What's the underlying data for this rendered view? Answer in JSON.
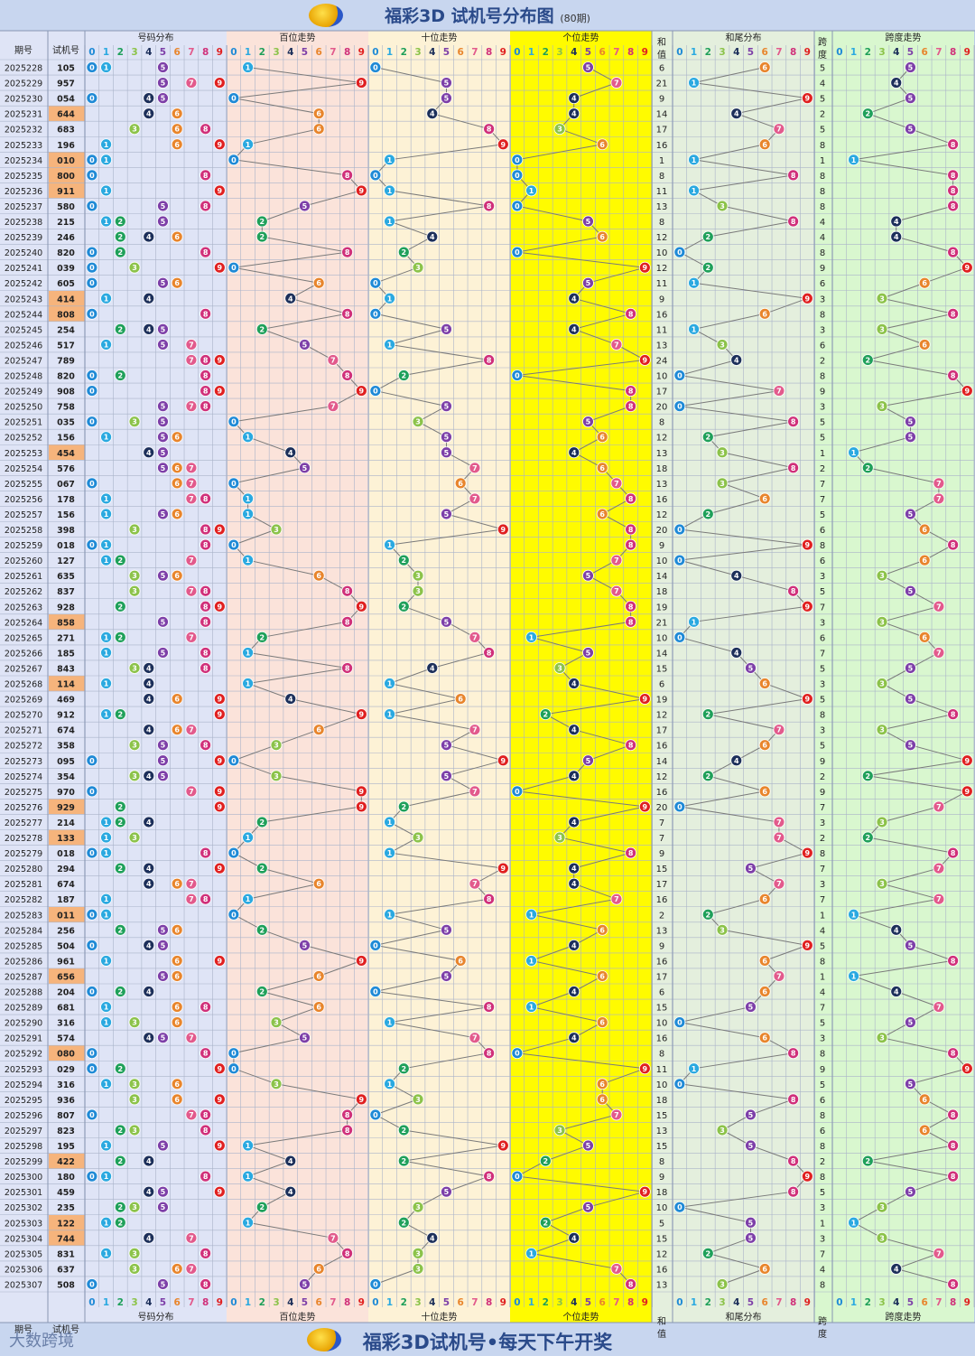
{
  "title": "福彩3D 试机号分布图",
  "period_count": "(80期)",
  "footer": "福彩3D试机号•每天下午开奖",
  "brand": "大数跨境",
  "headers": {
    "period": "期号",
    "test_number": "试机号",
    "number_dist": "号码分布",
    "hundreds": "百位走势",
    "tens": "十位走势",
    "units": "个位走势",
    "sum": "和值",
    "sum_tail": "和尾分布",
    "span": "跨度",
    "span_trend": "跨度走势"
  },
  "digits": [
    "0",
    "1",
    "2",
    "3",
    "4",
    "5",
    "6",
    "7",
    "8",
    "9"
  ],
  "colors": {
    "d0": "#1f8ad6",
    "d1": "#2aa9e0",
    "d2": "#1fa05a",
    "d3": "#8cc34a",
    "d4": "#1c2f5a",
    "d5": "#7d3fa8",
    "d6": "#e8852c",
    "d7": "#e25a8c",
    "d8": "#d0307a",
    "d9": "#e02020",
    "bg_dist": "#dfe4f6",
    "bg_hundreds": "#fbe3da",
    "bg_tens": "#fdf2d6",
    "bg_units": "#fffb00",
    "bg_tail": "#e4efdd",
    "bg_span": "#d9f7cf",
    "highlight": "#f6b47c"
  },
  "chart_data": {
    "type": "table",
    "periods": [
      "2025228",
      "2025229",
      "2025230",
      "2025231",
      "2025232",
      "2025233",
      "2025234",
      "2025235",
      "2025236",
      "2025237",
      "2025238",
      "2025239",
      "2025240",
      "2025241",
      "2025242",
      "2025243",
      "2025244",
      "2025245",
      "2025246",
      "2025247",
      "2025248",
      "2025249",
      "2025250",
      "2025251",
      "2025252",
      "2025253",
      "2025254",
      "2025255",
      "2025256",
      "2025257",
      "2025258",
      "2025259",
      "2025260",
      "2025261",
      "2025262",
      "2025263",
      "2025264",
      "2025265",
      "2025266",
      "2025267",
      "2025268",
      "2025269",
      "2025270",
      "2025271",
      "2025272",
      "2025273",
      "2025274",
      "2025275",
      "2025276",
      "2025277",
      "2025278",
      "2025279",
      "2025280",
      "2025281",
      "2025282",
      "2025283",
      "2025284",
      "2025285",
      "2025286",
      "2025287",
      "2025288",
      "2025289",
      "2025290",
      "2025291",
      "2025292",
      "2025293",
      "2025294",
      "2025295",
      "2025296",
      "2025297",
      "2025298",
      "2025299",
      "2025300",
      "2025301",
      "2025302",
      "2025303",
      "2025304",
      "2025305",
      "2025306",
      "2025307"
    ],
    "numbers": [
      "105",
      "957",
      "054",
      "644",
      "683",
      "196",
      "010",
      "800",
      "911",
      "580",
      "215",
      "246",
      "820",
      "039",
      "605",
      "414",
      "808",
      "254",
      "517",
      "789",
      "820",
      "908",
      "758",
      "035",
      "156",
      "454",
      "576",
      "067",
      "178",
      "156",
      "398",
      "018",
      "127",
      "635",
      "837",
      "928",
      "858",
      "271",
      "185",
      "843",
      "114",
      "469",
      "912",
      "674",
      "358",
      "095",
      "354",
      "970",
      "929",
      "214",
      "133",
      "018",
      "294",
      "674",
      "187",
      "011",
      "256",
      "504",
      "961",
      "656",
      "204",
      "681",
      "316",
      "574",
      "080",
      "029",
      "316",
      "936",
      "807",
      "823",
      "195",
      "422",
      "180",
      "459",
      "235",
      "122",
      "744",
      "831",
      "637",
      "508"
    ],
    "sums": [
      6,
      21,
      9,
      14,
      17,
      16,
      1,
      8,
      11,
      13,
      8,
      12,
      10,
      12,
      11,
      9,
      16,
      11,
      13,
      24,
      10,
      17,
      20,
      8,
      12,
      13,
      18,
      13,
      16,
      12,
      20,
      9,
      10,
      14,
      18,
      19,
      21,
      10,
      14,
      15,
      6,
      19,
      12,
      17,
      16,
      14,
      12,
      16,
      20,
      7,
      7,
      9,
      15,
      17,
      16,
      2,
      13,
      9,
      16,
      17,
      6,
      15,
      10,
      16,
      8,
      11,
      10,
      18,
      15,
      13,
      15,
      8,
      9,
      18,
      10,
      5,
      15,
      12,
      16,
      13
    ],
    "spans": [
      5,
      4,
      5,
      2,
      5,
      8,
      1,
      8,
      8,
      8,
      4,
      4,
      8,
      9,
      6,
      3,
      8,
      3,
      6,
      2,
      8,
      9,
      3,
      5,
      5,
      1,
      2,
      7,
      7,
      5,
      6,
      8,
      6,
      3,
      5,
      7,
      3,
      6,
      7,
      5,
      3,
      5,
      8,
      3,
      5,
      9,
      2,
      9,
      7,
      3,
      2,
      8,
      7,
      3,
      7,
      1,
      4,
      5,
      8,
      1,
      4,
      7,
      5,
      3,
      8,
      9,
      5,
      6,
      8,
      6,
      8,
      2,
      8,
      5,
      3,
      1,
      3,
      7,
      4,
      8
    ]
  }
}
